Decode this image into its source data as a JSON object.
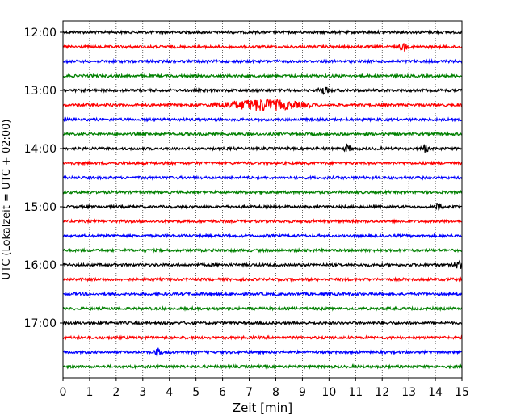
{
  "chart_data": {
    "type": "line",
    "title": "",
    "xlabel": "Zeit  [min]",
    "ylabel": "UTC (Lokalzeit = UTC + 02:00)",
    "xlim": [
      0,
      15
    ],
    "x_ticks": [
      "0",
      "1",
      "2",
      "3",
      "4",
      "5",
      "6",
      "7",
      "8",
      "9",
      "10",
      "11",
      "12",
      "13",
      "14",
      "15"
    ],
    "y_ticks": [
      "12:00",
      "13:00",
      "14:00",
      "15:00",
      "16:00",
      "17:00"
    ],
    "grid": "vertical dotted lines at each minute",
    "trace_start": "12:00",
    "trace_interval_min": 15,
    "trace_count": 24,
    "colors": [
      "#000000",
      "#ff0000",
      "#0000ff",
      "#008000"
    ],
    "events": [
      {
        "trace": 5,
        "x_start_min": 5.3,
        "x_end_min": 9.5,
        "peak_min": 7.5,
        "amplitude": "strong"
      },
      {
        "trace": 4,
        "x_start_min": 9.6,
        "x_end_min": 10.1,
        "peak_min": 9.8,
        "amplitude": "small"
      },
      {
        "trace": 8,
        "x_start_min": 10.5,
        "x_end_min": 10.9,
        "peak_min": 10.7,
        "amplitude": "small"
      },
      {
        "trace": 8,
        "x_start_min": 13.4,
        "x_end_min": 13.8,
        "peak_min": 13.6,
        "amplitude": "small"
      },
      {
        "trace": 12,
        "x_start_min": 14.0,
        "x_end_min": 14.3,
        "peak_min": 14.1,
        "amplitude": "small"
      },
      {
        "trace": 16,
        "x_start_min": 14.6,
        "x_end_min": 15.0,
        "peak_min": 14.9,
        "amplitude": "small"
      },
      {
        "trace": 1,
        "x_start_min": 12.6,
        "x_end_min": 13.0,
        "peak_min": 12.8,
        "amplitude": "small"
      },
      {
        "trace": 22,
        "x_start_min": 3.4,
        "x_end_min": 3.8,
        "peak_min": 3.55,
        "amplitude": "small"
      }
    ]
  }
}
